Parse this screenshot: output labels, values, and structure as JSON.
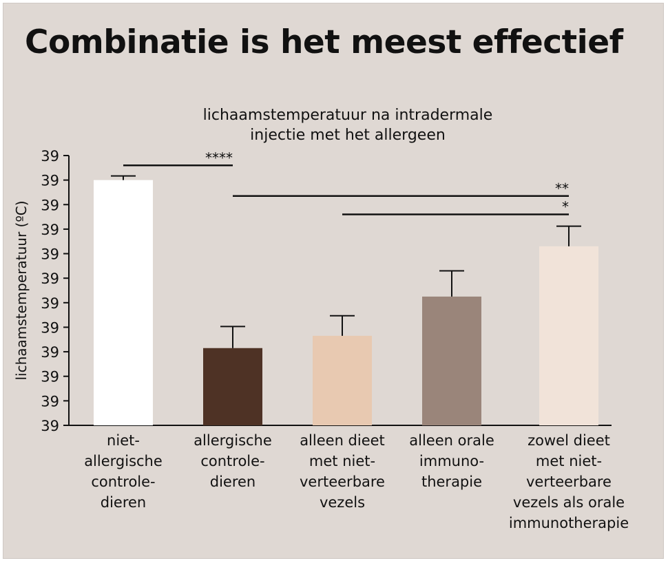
{
  "header": {
    "title": "Combinatie is het meest effectief"
  },
  "chart_data": {
    "type": "bar",
    "title": "lichaamstemperatuur na intradermale injectie met het allergeen",
    "title_lines": [
      "lichaamstemperatuur na intradermale",
      "injectie met het allergeen"
    ],
    "ylabel": "lichaamstemperatuur (ºC)",
    "xlabel": "",
    "y_tick_labels": [
      "39",
      "39",
      "39",
      "39",
      "39",
      "39",
      "39",
      "39",
      "39",
      "39",
      "39",
      "39"
    ],
    "ylim": [
      0,
      11
    ],
    "grid": false,
    "legend": "none",
    "categories": [
      "niet-allergische controle-dieren",
      "allergische controle-dieren",
      "alleen dieet met niet-verteerbare vezels",
      "alleen orale immuno-therapie",
      "zowel dieet met niet-verteerbare vezels als orale immunotherapie"
    ],
    "category_lines": [
      [
        "niet-",
        "allergische",
        "controle-",
        "dieren"
      ],
      [
        "allergische",
        "controle-",
        "dieren"
      ],
      [
        "alleen dieet",
        "met niet-",
        "verteerbare",
        "vezels"
      ],
      [
        "alleen orale",
        "immuno-",
        "therapie"
      ],
      [
        "zowel dieet",
        "met niet-",
        "verteerbare",
        "vezels als orale",
        "immunotherapie"
      ]
    ],
    "values": [
      10.0,
      3.15,
      3.65,
      5.25,
      7.3
    ],
    "errors": [
      0.17,
      0.88,
      0.82,
      1.05,
      0.82
    ],
    "colors": [
      "#ffffff",
      "#4e3225",
      "#e8c9b1",
      "#9a857a",
      "#f1e3d9"
    ],
    "significance": [
      {
        "from": 0,
        "to": 1,
        "label": "****",
        "y": 10.6
      },
      {
        "from": 1,
        "to": 4,
        "label": "**",
        "y": 9.35
      },
      {
        "from": 2,
        "to": 4,
        "label": "*",
        "y": 8.6
      }
    ]
  }
}
